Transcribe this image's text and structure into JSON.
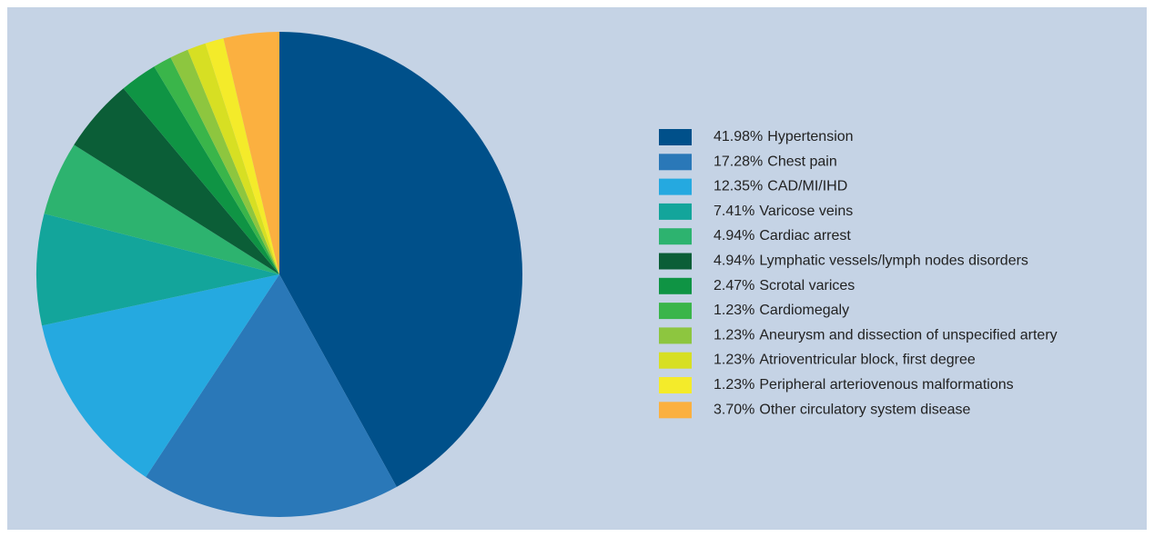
{
  "chart_data": {
    "type": "pie",
    "categories": [
      "Hypertension",
      "Chest pain",
      "CAD/MI/IHD",
      "Varicose veins",
      "Cardiac arrest",
      "Lymphatic vessels/lymph nodes disorders",
      "Scrotal varices",
      "Cardiomegaly",
      "Aneurysm and dissection of unspecified artery",
      "Atrioventricular block, first degree",
      "Peripheral arteriovenous malformations",
      "Other circulatory system disease"
    ],
    "values": [
      41.98,
      17.28,
      12.35,
      7.41,
      4.94,
      4.94,
      2.47,
      1.23,
      1.23,
      1.23,
      1.23,
      3.7
    ],
    "value_labels": [
      "41.98%",
      "17.28%",
      "12.35%",
      "7.41%",
      "4.94%",
      "4.94%",
      "2.47%",
      "1.23%",
      "1.23%",
      "1.23%",
      "1.23%",
      "3.70%"
    ],
    "colors": [
      "#00508a",
      "#2a78b8",
      "#25a9e0",
      "#13a59b",
      "#2db36f",
      "#0b5e37",
      "#0f9444",
      "#3ab54a",
      "#8dc63f",
      "#d7df23",
      "#f4eb2a",
      "#fbb040"
    ],
    "legend": "right"
  }
}
